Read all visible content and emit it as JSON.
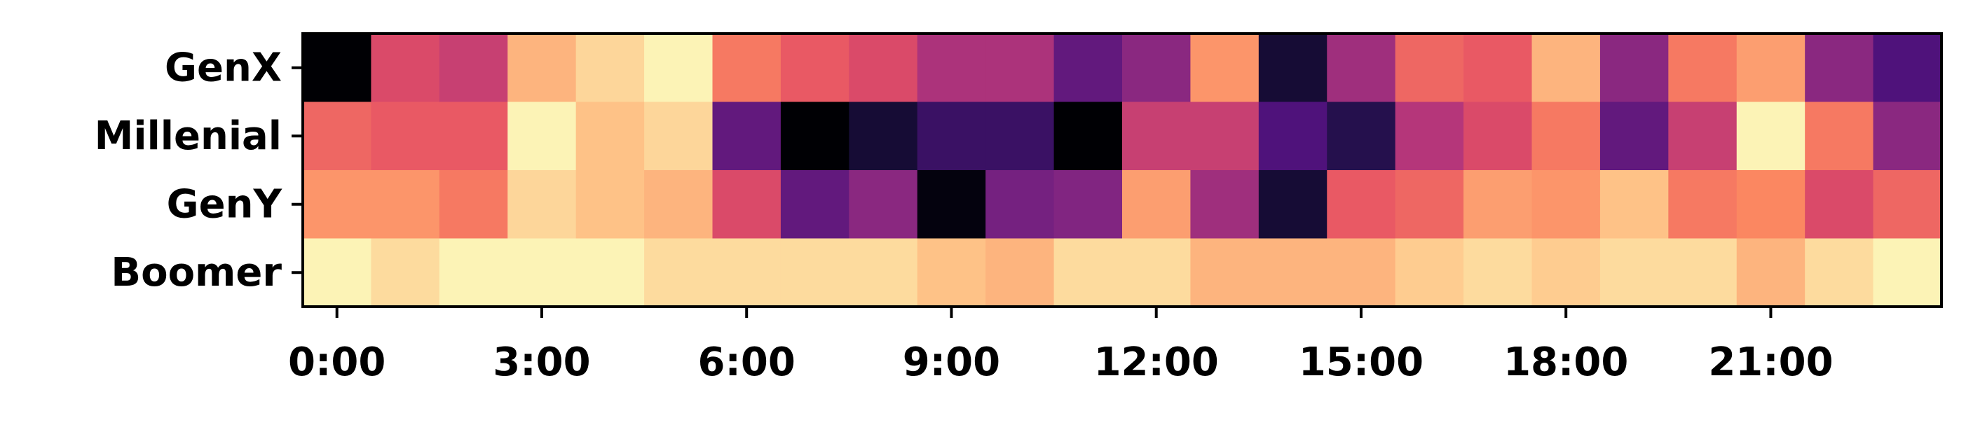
{
  "chart_data": {
    "type": "heatmap",
    "title": "",
    "xlabel": "",
    "ylabel": "",
    "colormap": "magma",
    "value_range": [
      0,
      1
    ],
    "grid": false,
    "legend": "none",
    "x_tick_labels": [
      "0:00",
      "3:00",
      "6:00",
      "9:00",
      "12:00",
      "15:00",
      "18:00",
      "21:00"
    ],
    "x_tick_hours": [
      0,
      3,
      6,
      9,
      12,
      15,
      18,
      21
    ],
    "hours": [
      0,
      1,
      2,
      3,
      4,
      5,
      6,
      7,
      8,
      9,
      10,
      11,
      12,
      13,
      14,
      15,
      16,
      17,
      18,
      19,
      20,
      21,
      22,
      23
    ],
    "rows": [
      "GenX",
      "Millenial",
      "GenY",
      "Boomer"
    ],
    "values": [
      [
        0.0,
        0.6,
        0.55,
        0.85,
        0.92,
        0.98,
        0.72,
        0.65,
        0.6,
        0.48,
        0.48,
        0.3,
        0.4,
        0.78,
        0.1,
        0.45,
        0.68,
        0.65,
        0.85,
        0.4,
        0.72,
        0.8,
        0.4,
        0.25
      ],
      [
        0.68,
        0.65,
        0.65,
        0.98,
        0.88,
        0.92,
        0.3,
        0.0,
        0.1,
        0.2,
        0.2,
        0.0,
        0.55,
        0.55,
        0.25,
        0.15,
        0.5,
        0.6,
        0.72,
        0.3,
        0.55,
        0.98,
        0.72,
        0.4
      ],
      [
        0.78,
        0.78,
        0.72,
        0.92,
        0.88,
        0.85,
        0.6,
        0.3,
        0.4,
        0.02,
        0.35,
        0.38,
        0.8,
        0.45,
        0.1,
        0.65,
        0.68,
        0.8,
        0.78,
        0.88,
        0.72,
        0.75,
        0.6,
        0.68
      ],
      [
        0.98,
        0.93,
        0.98,
        0.98,
        0.98,
        0.93,
        0.93,
        0.93,
        0.93,
        0.88,
        0.85,
        0.93,
        0.93,
        0.85,
        0.85,
        0.85,
        0.9,
        0.93,
        0.9,
        0.93,
        0.93,
        0.85,
        0.93,
        0.98
      ]
    ]
  }
}
